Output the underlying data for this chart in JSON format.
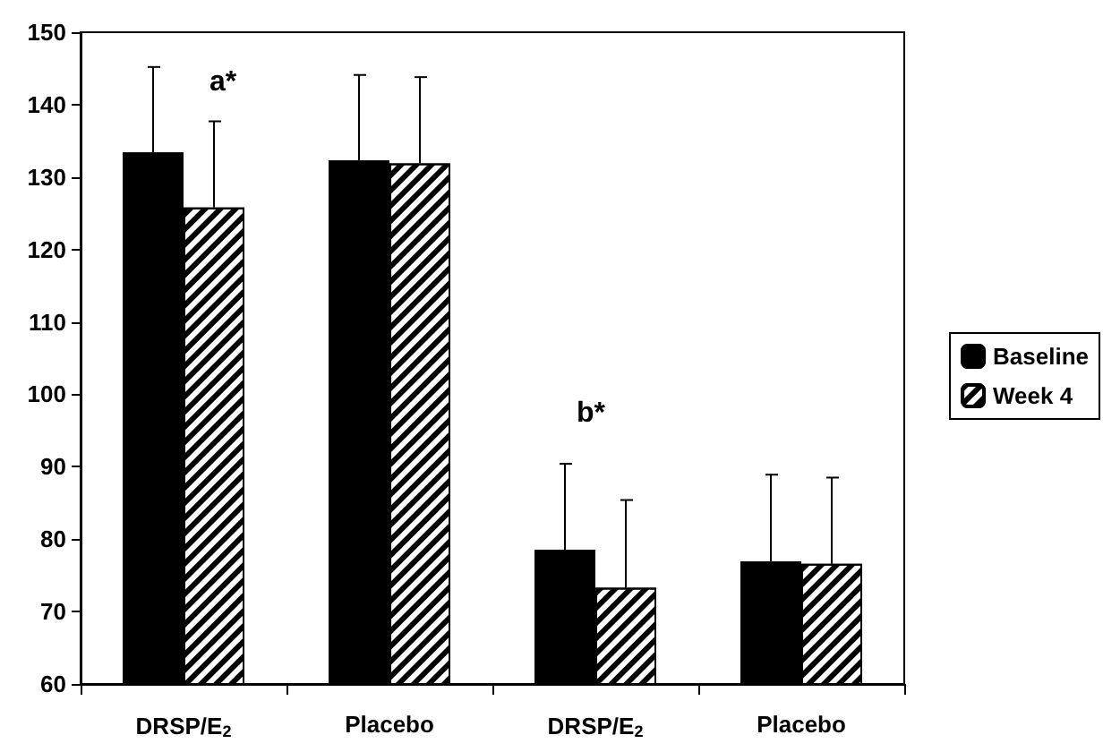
{
  "chart_data": {
    "type": "bar",
    "categories": [
      "DRSP/E$_{2}$",
      "Placebo",
      "DRSP/E$_{2}$",
      "Placebo"
    ],
    "series": [
      {
        "name": "Baseline",
        "color": "#000000",
        "values": [
          133.4,
          132.3,
          78.5,
          76.9
        ],
        "errors": [
          [
            133.4,
            145.2
          ],
          [
            132.3,
            144.1
          ],
          [
            78.5,
            90.4
          ],
          [
            76.9,
            88.9
          ]
        ]
      },
      {
        "name": "Week 4",
        "color": "#ffffff",
        "values": [
          125.8,
          131.9,
          73.3,
          76.6
        ],
        "errors": [
          [
            125.8,
            137.7
          ],
          [
            131.9,
            143.8
          ],
          [
            73.3,
            85.4
          ],
          [
            76.6,
            88.5
          ]
        ]
      }
    ],
    "ylim": [
      60,
      150
    ],
    "yticks": [
      60,
      70,
      80,
      90,
      100,
      110,
      120,
      130,
      140,
      150
    ],
    "grid": false,
    "legend": "right",
    "annotations": [
      "a*",
      "b*"
    ]
  }
}
